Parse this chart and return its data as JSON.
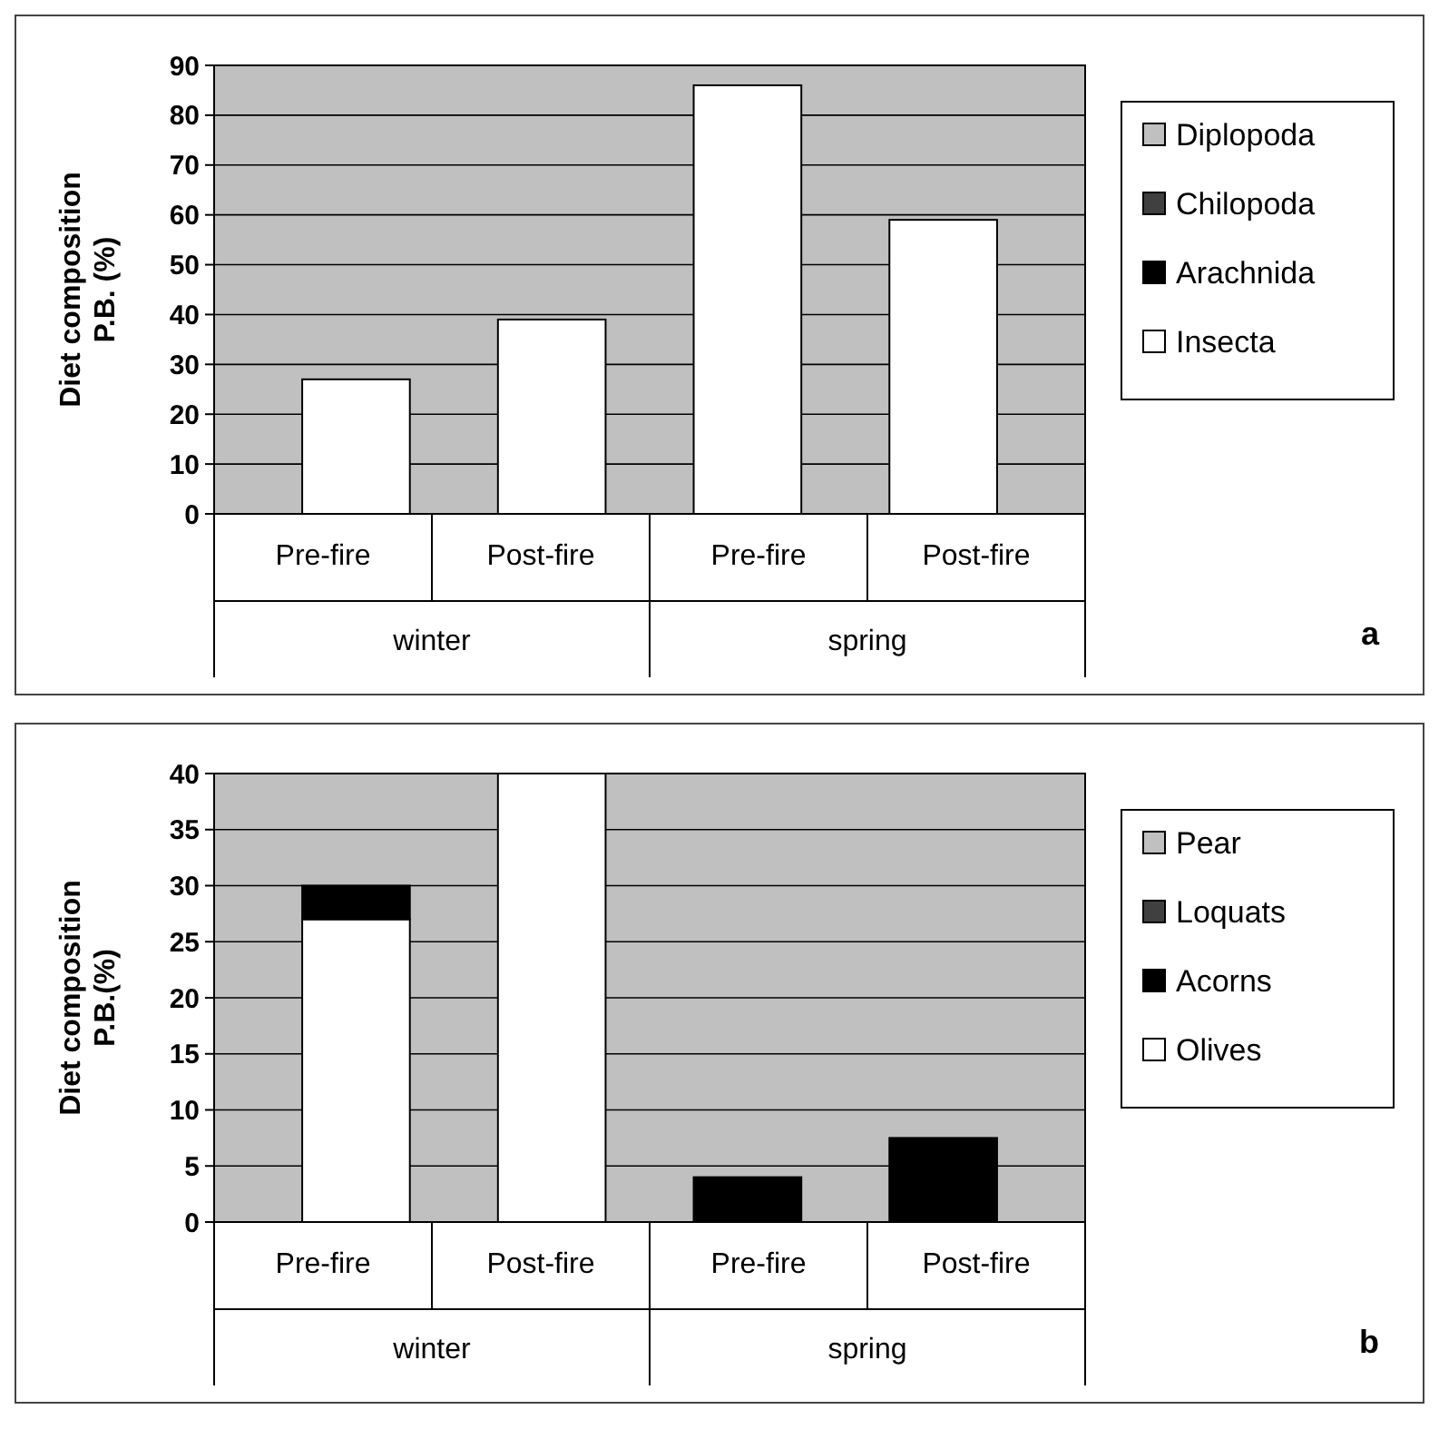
{
  "chart_data": [
    {
      "type": "bar",
      "stacked": true,
      "categories": [
        "Pre-fire",
        "Post-fire",
        "Pre-fire",
        "Post-fire"
      ],
      "ylabel": "Diet composition\nP.B. (%)",
      "ylim": [
        0,
        90
      ],
      "yticks": [
        0,
        10,
        20,
        30,
        40,
        50,
        60,
        70,
        80,
        90
      ],
      "grid": "y",
      "legend": "right",
      "annotations": [
        "winter",
        "spring",
        "a"
      ],
      "series": [
        {
          "name": "Insecta",
          "color": "#ffffff",
          "values": [
            27,
            39,
            86,
            59
          ]
        },
        {
          "name": "Arachnida",
          "color": "#000000",
          "values": [
            0,
            0,
            0,
            0
          ]
        },
        {
          "name": "Chilopoda",
          "color": "#404040",
          "values": [
            0,
            0,
            0,
            0
          ]
        },
        {
          "name": "Diplopoda",
          "color": "#c0c0c0",
          "values": [
            0,
            0,
            0,
            0
          ]
        }
      ]
    },
    {
      "type": "bar",
      "stacked": true,
      "categories": [
        "Pre-fire",
        "Post-fire",
        "Pre-fire",
        "Post-fire"
      ],
      "ylabel": "Diet composition\nP.B.(%)",
      "ylim": [
        0,
        40
      ],
      "yticks": [
        0,
        5,
        10,
        15,
        20,
        25,
        30,
        35,
        40
      ],
      "grid": "y",
      "legend": "right",
      "annotations": [
        "winter",
        "spring",
        "b"
      ],
      "series": [
        {
          "name": "Olives",
          "color": "#ffffff",
          "values": [
            27,
            40,
            0,
            0
          ]
        },
        {
          "name": "Acorns",
          "color": "#000000",
          "values": [
            3,
            0,
            4,
            7.5
          ]
        },
        {
          "name": "Loquats",
          "color": "#404040",
          "values": [
            0,
            0,
            0,
            0
          ]
        },
        {
          "name": "Pear",
          "color": "#c0c0c0",
          "values": [
            0,
            0,
            0,
            0
          ]
        }
      ]
    }
  ]
}
